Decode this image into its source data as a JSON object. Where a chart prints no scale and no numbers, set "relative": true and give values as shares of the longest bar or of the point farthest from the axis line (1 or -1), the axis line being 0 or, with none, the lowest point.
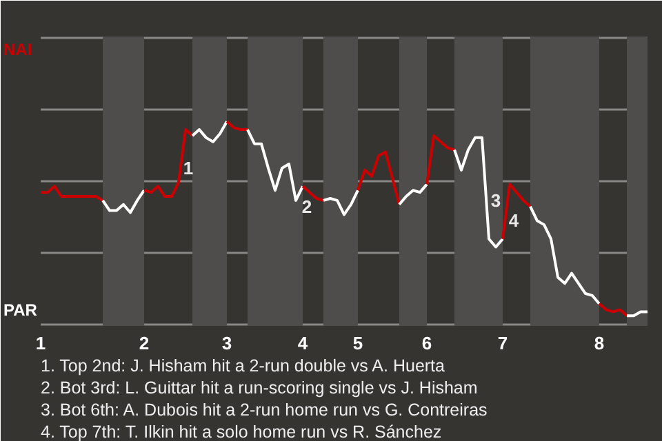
{
  "chart_data": {
    "type": "line",
    "relative": true,
    "legend": false,
    "marker": "none",
    "line_style": "solid",
    "categories": [
      "1",
      null,
      null,
      null,
      null,
      null,
      null,
      null,
      null,
      null,
      null,
      null,
      null,
      null,
      null,
      "2",
      null,
      null,
      null,
      null,
      null,
      null,
      null,
      null,
      null,
      null,
      null,
      "3",
      null,
      null,
      null,
      null,
      null,
      null,
      null,
      null,
      null,
      null,
      "4",
      null,
      null,
      null,
      null,
      null,
      null,
      null,
      "5",
      null,
      null,
      null,
      null,
      null,
      null,
      null,
      null,
      null,
      "6",
      null,
      null,
      null,
      null,
      null,
      null,
      null,
      null,
      null,
      null,
      "7",
      null,
      null,
      null,
      null,
      null,
      null,
      null,
      null,
      null,
      null,
      null,
      null,
      null,
      "8",
      null,
      null,
      null,
      null,
      null,
      null,
      null
    ],
    "series": [
      {
        "name": "NAI",
        "color": "#cc0000",
        "values": [
          0.65,
          0.65,
          0.68,
          0.63,
          0.63,
          0.63,
          0.63,
          0.63,
          0.63,
          0.61,
          null,
          null,
          null,
          null,
          null,
          null,
          null,
          null,
          null,
          null,
          null,
          null,
          null,
          null,
          null,
          null,
          null,
          null,
          null,
          null,
          null,
          null,
          null,
          null,
          null,
          null,
          null,
          null,
          null,
          null,
          null,
          null,
          null,
          null,
          null,
          null,
          null,
          null,
          null,
          null,
          null,
          null,
          null,
          null,
          null,
          null,
          null,
          null,
          null,
          null,
          null,
          null,
          null,
          null,
          null,
          null,
          null,
          null,
          null,
          null,
          null,
          null,
          null,
          null,
          null,
          null,
          null,
          null,
          null,
          null,
          null,
          null,
          null,
          null,
          null,
          null,
          null,
          null,
          null
        ]
      },
      {
        "name": "PAR",
        "color": "#ffffff",
        "values": [
          null,
          null,
          null,
          null,
          null,
          null,
          null,
          null,
          null,
          0.61,
          0.56,
          0.56,
          0.59,
          0.55,
          0.61,
          0.66,
          null,
          null,
          null,
          null,
          null,
          null,
          null,
          null,
          null,
          null,
          null,
          null,
          null,
          null,
          null,
          null,
          null,
          null,
          null,
          null,
          null,
          null,
          null,
          null,
          null,
          null,
          null,
          null,
          null,
          null,
          null,
          null,
          null,
          null,
          null,
          null,
          null,
          null,
          null,
          null,
          null,
          null,
          null,
          null,
          null,
          null,
          null,
          null,
          null,
          null,
          null,
          null,
          null,
          null,
          null,
          null,
          null,
          null,
          null,
          null,
          null,
          null,
          null,
          null,
          null,
          null,
          null,
          null,
          null,
          null,
          null,
          null,
          null
        ]
      },
      {
        "color": "#cc0000",
        "values": [
          null,
          null,
          null,
          null,
          null,
          null,
          null,
          null,
          null,
          null,
          null,
          null,
          null,
          null,
          null,
          0.66,
          0.65,
          0.68,
          0.63,
          0.63,
          0.7,
          0.96,
          0.93,
          null,
          null,
          null,
          null,
          null,
          null,
          null,
          null,
          null,
          null,
          null,
          null,
          null,
          null,
          null,
          null,
          null,
          null,
          null,
          null,
          null,
          null,
          null,
          null,
          null,
          null,
          null,
          null,
          null,
          null,
          null,
          null,
          null,
          null,
          null,
          null,
          null,
          null,
          null,
          null,
          null,
          null,
          null,
          null,
          null,
          null,
          null,
          null,
          null,
          null,
          null,
          null,
          null,
          null,
          null,
          null,
          null,
          null,
          null,
          null,
          null,
          null,
          null,
          null,
          null,
          null
        ]
      },
      {
        "color": "#ffffff",
        "values": [
          null,
          null,
          null,
          null,
          null,
          null,
          null,
          null,
          null,
          null,
          null,
          null,
          null,
          null,
          null,
          null,
          null,
          null,
          null,
          null,
          null,
          null,
          0.93,
          0.96,
          0.92,
          0.9,
          0.94,
          1,
          null,
          null,
          null,
          null,
          null,
          null,
          null,
          null,
          null,
          null,
          null,
          null,
          null,
          null,
          null,
          null,
          null,
          null,
          null,
          null,
          null,
          null,
          null,
          null,
          null,
          null,
          null,
          null,
          null,
          null,
          null,
          null,
          null,
          null,
          null,
          null,
          null,
          null,
          null,
          null,
          null,
          null,
          null,
          null,
          null,
          null,
          null,
          null,
          null,
          null,
          null,
          null,
          null,
          null,
          null,
          null,
          null,
          null,
          null,
          null,
          null
        ]
      },
      {
        "color": "#cc0000",
        "values": [
          null,
          null,
          null,
          null,
          null,
          null,
          null,
          null,
          null,
          null,
          null,
          null,
          null,
          null,
          null,
          null,
          null,
          null,
          null,
          null,
          null,
          null,
          null,
          null,
          null,
          null,
          null,
          1,
          0.97,
          0.96,
          0.96,
          null,
          null,
          null,
          null,
          null,
          null,
          null,
          null,
          null,
          null,
          null,
          null,
          null,
          null,
          null,
          null,
          null,
          null,
          null,
          null,
          null,
          null,
          null,
          null,
          null,
          null,
          null,
          null,
          null,
          null,
          null,
          null,
          null,
          null,
          null,
          null,
          null,
          null,
          null,
          null,
          null,
          null,
          null,
          null,
          null,
          null,
          null,
          null,
          null,
          null,
          null,
          null,
          null,
          null,
          null,
          null,
          null,
          null
        ]
      },
      {
        "color": "#ffffff",
        "values": [
          null,
          null,
          null,
          null,
          null,
          null,
          null,
          null,
          null,
          null,
          null,
          null,
          null,
          null,
          null,
          null,
          null,
          null,
          null,
          null,
          null,
          null,
          null,
          null,
          null,
          null,
          null,
          null,
          null,
          null,
          0.96,
          0.89,
          0.89,
          0.77,
          0.66,
          0.77,
          0.79,
          0.61,
          0.68,
          null,
          null,
          null,
          null,
          null,
          null,
          null,
          null,
          null,
          null,
          null,
          null,
          null,
          null,
          null,
          null,
          null,
          null,
          null,
          null,
          null,
          null,
          null,
          null,
          null,
          null,
          null,
          null,
          null,
          null,
          null,
          null,
          null,
          null,
          null,
          null,
          null,
          null,
          null,
          null,
          null,
          null,
          null,
          null,
          null,
          null,
          null,
          null,
          null,
          null
        ]
      },
      {
        "color": "#cc0000",
        "values": [
          null,
          null,
          null,
          null,
          null,
          null,
          null,
          null,
          null,
          null,
          null,
          null,
          null,
          null,
          null,
          null,
          null,
          null,
          null,
          null,
          null,
          null,
          null,
          null,
          null,
          null,
          null,
          null,
          null,
          null,
          null,
          null,
          null,
          null,
          null,
          null,
          null,
          null,
          0.68,
          0.65,
          0.62,
          0.61,
          null,
          null,
          null,
          null,
          null,
          null,
          null,
          null,
          null,
          null,
          null,
          null,
          null,
          null,
          null,
          null,
          null,
          null,
          null,
          null,
          null,
          null,
          null,
          null,
          null,
          null,
          null,
          null,
          null,
          null,
          null,
          null,
          null,
          null,
          null,
          null,
          null,
          null,
          null,
          null,
          null,
          null,
          null,
          null,
          null,
          null,
          null
        ]
      },
      {
        "color": "#ffffff",
        "values": [
          null,
          null,
          null,
          null,
          null,
          null,
          null,
          null,
          null,
          null,
          null,
          null,
          null,
          null,
          null,
          null,
          null,
          null,
          null,
          null,
          null,
          null,
          null,
          null,
          null,
          null,
          null,
          null,
          null,
          null,
          null,
          null,
          null,
          null,
          null,
          null,
          null,
          null,
          null,
          null,
          null,
          0.61,
          0.62,
          0.61,
          0.54,
          0.59,
          0.66,
          null,
          null,
          null,
          null,
          null,
          null,
          null,
          null,
          null,
          null,
          null,
          null,
          null,
          null,
          null,
          null,
          null,
          null,
          null,
          null,
          null,
          null,
          null,
          null,
          null,
          null,
          null,
          null,
          null,
          null,
          null,
          null,
          null,
          null,
          null,
          null,
          null,
          null,
          null,
          null,
          null,
          null
        ]
      },
      {
        "color": "#cc0000",
        "values": [
          null,
          null,
          null,
          null,
          null,
          null,
          null,
          null,
          null,
          null,
          null,
          null,
          null,
          null,
          null,
          null,
          null,
          null,
          null,
          null,
          null,
          null,
          null,
          null,
          null,
          null,
          null,
          null,
          null,
          null,
          null,
          null,
          null,
          null,
          null,
          null,
          null,
          null,
          null,
          null,
          null,
          null,
          null,
          null,
          null,
          null,
          0.66,
          0.76,
          0.73,
          0.83,
          0.85,
          0.72,
          0.59,
          null,
          null,
          null,
          null,
          null,
          null,
          null,
          null,
          null,
          null,
          null,
          null,
          null,
          null,
          null,
          null,
          null,
          null,
          null,
          null,
          null,
          null,
          null,
          null,
          null,
          null,
          null,
          null,
          null,
          null,
          null,
          null,
          null,
          null,
          null,
          null
        ]
      },
      {
        "color": "#ffffff",
        "values": [
          null,
          null,
          null,
          null,
          null,
          null,
          null,
          null,
          null,
          null,
          null,
          null,
          null,
          null,
          null,
          null,
          null,
          null,
          null,
          null,
          null,
          null,
          null,
          null,
          null,
          null,
          null,
          null,
          null,
          null,
          null,
          null,
          null,
          null,
          null,
          null,
          null,
          null,
          null,
          null,
          null,
          null,
          null,
          null,
          null,
          null,
          null,
          null,
          null,
          null,
          null,
          null,
          0.59,
          0.63,
          0.66,
          0.65,
          0.69,
          null,
          null,
          null,
          null,
          null,
          null,
          null,
          null,
          null,
          null,
          null,
          null,
          null,
          null,
          null,
          null,
          null,
          null,
          null,
          null,
          null,
          null,
          null,
          null,
          null,
          null,
          null,
          null,
          null,
          null,
          null,
          null
        ]
      },
      {
        "color": "#cc0000",
        "values": [
          null,
          null,
          null,
          null,
          null,
          null,
          null,
          null,
          null,
          null,
          null,
          null,
          null,
          null,
          null,
          null,
          null,
          null,
          null,
          null,
          null,
          null,
          null,
          null,
          null,
          null,
          null,
          null,
          null,
          null,
          null,
          null,
          null,
          null,
          null,
          null,
          null,
          null,
          null,
          null,
          null,
          null,
          null,
          null,
          null,
          null,
          null,
          null,
          null,
          null,
          null,
          null,
          null,
          null,
          null,
          null,
          0.69,
          0.93,
          0.9,
          0.87,
          0.86,
          null,
          null,
          null,
          null,
          null,
          null,
          null,
          null,
          null,
          null,
          null,
          null,
          null,
          null,
          null,
          null,
          null,
          null,
          null,
          null,
          null,
          null,
          null,
          null,
          null,
          null,
          null,
          null
        ]
      },
      {
        "color": "#ffffff",
        "values": [
          null,
          null,
          null,
          null,
          null,
          null,
          null,
          null,
          null,
          null,
          null,
          null,
          null,
          null,
          null,
          null,
          null,
          null,
          null,
          null,
          null,
          null,
          null,
          null,
          null,
          null,
          null,
          null,
          null,
          null,
          null,
          null,
          null,
          null,
          null,
          null,
          null,
          null,
          null,
          null,
          null,
          null,
          null,
          null,
          null,
          null,
          null,
          null,
          null,
          null,
          null,
          null,
          null,
          null,
          null,
          null,
          null,
          null,
          null,
          null,
          0.86,
          0.76,
          0.86,
          0.92,
          0.92,
          0.42,
          0.38,
          0.42,
          null,
          null,
          null,
          null,
          null,
          null,
          null,
          null,
          null,
          null,
          null,
          null,
          null,
          null,
          null,
          null,
          null,
          null,
          null,
          null,
          null
        ]
      },
      {
        "color": "#cc0000",
        "values": [
          null,
          null,
          null,
          null,
          null,
          null,
          null,
          null,
          null,
          null,
          null,
          null,
          null,
          null,
          null,
          null,
          null,
          null,
          null,
          null,
          null,
          null,
          null,
          null,
          null,
          null,
          null,
          null,
          null,
          null,
          null,
          null,
          null,
          null,
          null,
          null,
          null,
          null,
          null,
          null,
          null,
          null,
          null,
          null,
          null,
          null,
          null,
          null,
          null,
          null,
          null,
          null,
          null,
          null,
          null,
          null,
          null,
          null,
          null,
          null,
          null,
          null,
          null,
          null,
          null,
          null,
          null,
          0.42,
          0.69,
          0.65,
          0.61,
          0.58,
          null,
          null,
          null,
          null,
          null,
          null,
          null,
          null,
          null,
          null,
          null,
          null,
          null,
          null,
          null,
          null,
          null
        ]
      },
      {
        "color": "#ffffff",
        "values": [
          null,
          null,
          null,
          null,
          null,
          null,
          null,
          null,
          null,
          null,
          null,
          null,
          null,
          null,
          null,
          null,
          null,
          null,
          null,
          null,
          null,
          null,
          null,
          null,
          null,
          null,
          null,
          null,
          null,
          null,
          null,
          null,
          null,
          null,
          null,
          null,
          null,
          null,
          null,
          null,
          null,
          null,
          null,
          null,
          null,
          null,
          null,
          null,
          null,
          null,
          null,
          null,
          null,
          null,
          null,
          null,
          null,
          null,
          null,
          null,
          null,
          null,
          null,
          null,
          null,
          null,
          null,
          null,
          null,
          null,
          null,
          0.58,
          0.51,
          0.49,
          0.42,
          0.23,
          0.2,
          0.25,
          0.2,
          0.15,
          0.14,
          0.1,
          null,
          null,
          null,
          null,
          null,
          null,
          null
        ]
      },
      {
        "color": "#cc0000",
        "values": [
          null,
          null,
          null,
          null,
          null,
          null,
          null,
          null,
          null,
          null,
          null,
          null,
          null,
          null,
          null,
          null,
          null,
          null,
          null,
          null,
          null,
          null,
          null,
          null,
          null,
          null,
          null,
          null,
          null,
          null,
          null,
          null,
          null,
          null,
          null,
          null,
          null,
          null,
          null,
          null,
          null,
          null,
          null,
          null,
          null,
          null,
          null,
          null,
          null,
          null,
          null,
          null,
          null,
          null,
          null,
          null,
          null,
          null,
          null,
          null,
          null,
          null,
          null,
          null,
          null,
          null,
          null,
          null,
          null,
          null,
          null,
          null,
          null,
          null,
          null,
          null,
          null,
          null,
          null,
          null,
          null,
          0.1,
          0.07,
          0.06,
          0.07,
          0.04,
          null,
          null,
          null
        ]
      },
      {
        "color": "#ffffff",
        "values": [
          null,
          null,
          null,
          null,
          null,
          null,
          null,
          null,
          null,
          null,
          null,
          null,
          null,
          null,
          null,
          null,
          null,
          null,
          null,
          null,
          null,
          null,
          null,
          null,
          null,
          null,
          null,
          null,
          null,
          null,
          null,
          null,
          null,
          null,
          null,
          null,
          null,
          null,
          null,
          null,
          null,
          null,
          null,
          null,
          null,
          null,
          null,
          null,
          null,
          null,
          null,
          null,
          null,
          null,
          null,
          null,
          null,
          null,
          null,
          null,
          null,
          null,
          null,
          null,
          null,
          null,
          null,
          null,
          null,
          null,
          null,
          null,
          null,
          null,
          null,
          null,
          null,
          null,
          null,
          null,
          null,
          null,
          null,
          null,
          null,
          0.04,
          0.04,
          0.06,
          0.06
        ]
      }
    ],
    "annotations": [
      "1",
      "2",
      "3",
      "4",
      "1. Top 2nd: J. Hisham hit a 2-run double vs A. Huerta",
      "2. Bot 3rd: L. Guittar hit a run-scoring single vs J. Hisham",
      "3. Bot 6th: A. Dubois hit a 2-run home run vs G. Contreiras",
      "4. Top 7th: T. Ilkin hit a solo home run vs R. Sánchez"
    ]
  }
}
